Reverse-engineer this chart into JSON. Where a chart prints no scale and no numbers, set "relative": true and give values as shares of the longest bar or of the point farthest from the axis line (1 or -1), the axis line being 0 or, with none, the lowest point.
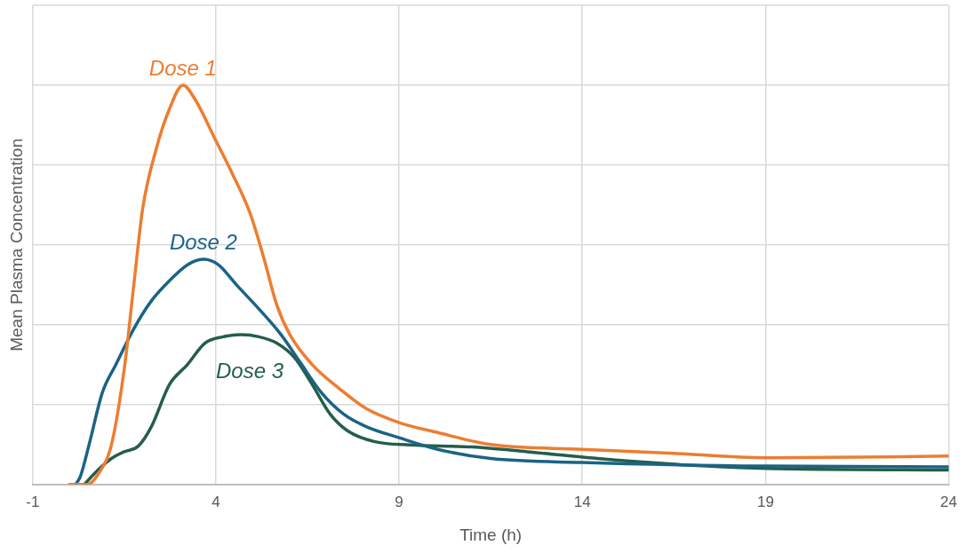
{
  "chart_data": {
    "type": "line",
    "relative": true,
    "xlabel": "Time (h)",
    "ylabel": "Mean Plasma Concentration",
    "xlim": [
      -1,
      24
    ],
    "xticks": [
      -1,
      4,
      9,
      14,
      19,
      24
    ],
    "grid": true,
    "legend": false,
    "marker": "none",
    "line_style": "solid",
    "series": [
      {
        "name": "Dose 1",
        "color": "#ed7d31",
        "x": [
          0,
          0.5,
          0.78,
          1.15,
          1.5,
          1.76,
          2.0,
          2.37,
          2.73,
          3.1,
          3.46,
          3.95,
          4.44,
          4.93,
          5.3,
          5.66,
          6.02,
          6.63,
          7.37,
          8.1,
          9,
          10.05,
          11.5,
          14,
          16.5,
          19,
          24
        ],
        "values": [
          0,
          0,
          0.025,
          0.1,
          0.29,
          0.5,
          0.69,
          0.84,
          0.94,
          1,
          0.96,
          0.87,
          0.78,
          0.68,
          0.57,
          0.45,
          0.375,
          0.3,
          0.24,
          0.19,
          0.155,
          0.13,
          0.1,
          0.088,
          0.078,
          0.067,
          0.071
        ]
      },
      {
        "name": "Dose 2",
        "color": "#1b6386",
        "x": [
          0.17,
          0.3,
          0.54,
          0.9,
          1.27,
          1.76,
          2.24,
          2.73,
          3.22,
          3.66,
          4.07,
          4.56,
          5.17,
          5.78,
          6.27,
          6.88,
          7.49,
          8.1,
          9,
          10.05,
          11.5,
          14,
          19,
          24
        ],
        "values": [
          0,
          0.02,
          0.1,
          0.23,
          0.3,
          0.39,
          0.46,
          0.51,
          0.55,
          0.564,
          0.55,
          0.5,
          0.44,
          0.375,
          0.31,
          0.23,
          0.176,
          0.145,
          0.117,
          0.088,
          0.065,
          0.055,
          0.046,
          0.044
        ]
      },
      {
        "name": "Dose 3",
        "color": "#245e4b",
        "x": [
          0.41,
          0.78,
          1.15,
          1.5,
          1.88,
          2.24,
          2.73,
          3.22,
          3.7,
          4.2,
          4.68,
          5.17,
          5.66,
          6.15,
          6.63,
          7.12,
          7.6,
          8.34,
          9.3,
          11.0,
          12.5,
          14.9,
          17.4,
          19,
          24
        ],
        "values": [
          0,
          0.036,
          0.065,
          0.082,
          0.096,
          0.145,
          0.25,
          0.3,
          0.354,
          0.37,
          0.375,
          0.37,
          0.354,
          0.317,
          0.25,
          0.176,
          0.134,
          0.107,
          0.099,
          0.094,
          0.082,
          0.061,
          0.046,
          0.04,
          0.036
        ]
      }
    ]
  }
}
